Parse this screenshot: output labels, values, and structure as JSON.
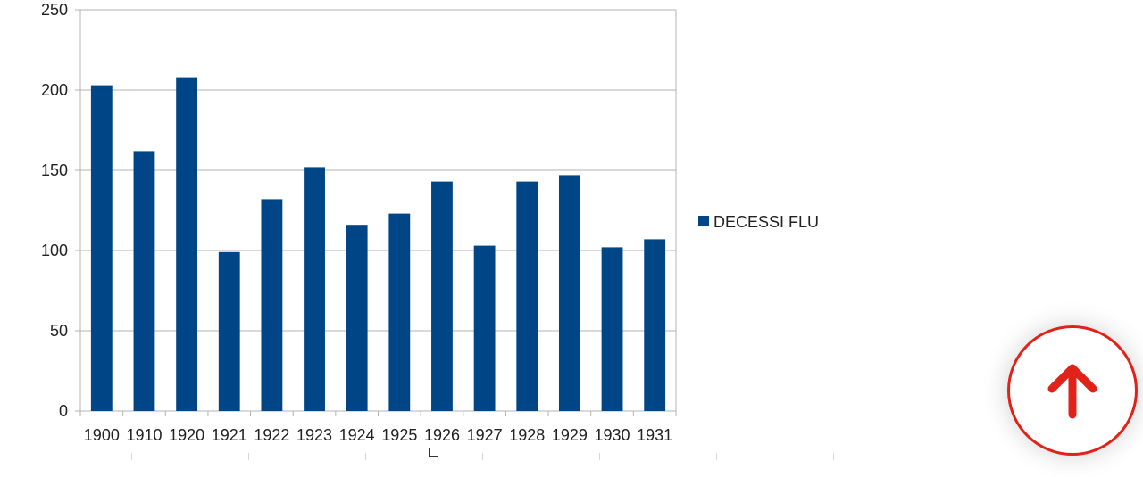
{
  "chart_data": {
    "type": "bar",
    "categories": [
      "1900",
      "1910",
      "1920",
      "1921",
      "1922",
      "1923",
      "1924",
      "1925",
      "1926",
      "1927",
      "1928",
      "1929",
      "1930",
      "1931"
    ],
    "series": [
      {
        "name": "DECESSI FLU",
        "values": [
          203,
          162,
          208,
          99,
          132,
          152,
          116,
          123,
          143,
          103,
          143,
          147,
          102,
          107
        ]
      }
    ],
    "yticks": [
      "0",
      "50",
      "100",
      "150",
      "200",
      "250"
    ],
    "ylim": [
      0,
      250
    ],
    "grid": true,
    "legend_position": "right",
    "bar_color": "#004586",
    "grid_color": "#b3b3b3"
  },
  "controls": {
    "scroll_top_icon": "arrow-up-icon",
    "accent_color": "#e02218"
  }
}
